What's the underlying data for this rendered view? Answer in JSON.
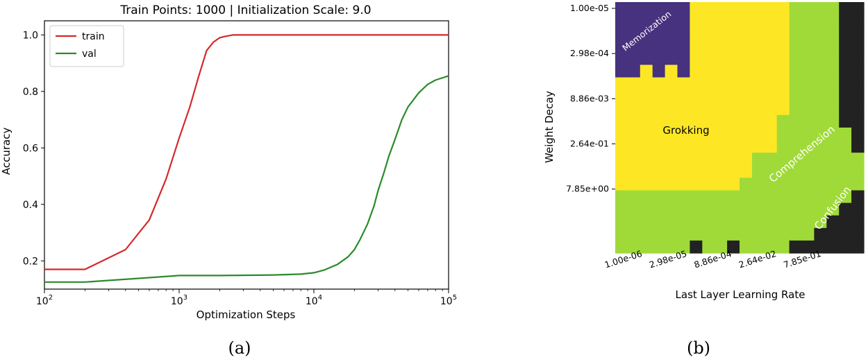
{
  "chart_data": [
    {
      "type": "line",
      "title": "Train Points: 1000 | Initialization Scale: 9.0",
      "xlabel": "Optimization Steps",
      "ylabel": "Accuracy",
      "xscale": "log",
      "xlim": [
        100,
        100000
      ],
      "ylim": [
        0.1,
        1.05
      ],
      "xticks": [
        {
          "value": 100,
          "base": "10",
          "exp": "2"
        },
        {
          "value": 1000,
          "base": "10",
          "exp": "3"
        },
        {
          "value": 10000,
          "base": "10",
          "exp": "4"
        },
        {
          "value": 100000,
          "base": "10",
          "exp": "5"
        }
      ],
      "yticks": [
        {
          "value": 0.2,
          "label": "0.2"
        },
        {
          "value": 0.4,
          "label": "0.4"
        },
        {
          "value": 0.6,
          "label": "0.6"
        },
        {
          "value": 0.8,
          "label": "0.8"
        },
        {
          "value": 1.0,
          "label": "1.0"
        }
      ],
      "legend_position": "top-left",
      "grid": false,
      "caption": "(a)",
      "series": [
        {
          "name": "train",
          "color": "#d62728",
          "x": [
            100,
            200,
            400,
            600,
            800,
            1000,
            1200,
            1400,
            1600,
            1800,
            2000,
            2200,
            2500,
            3000,
            5000,
            8000,
            10000,
            20000,
            50000,
            100000
          ],
          "y": [
            0.17,
            0.17,
            0.24,
            0.345,
            0.49,
            0.635,
            0.745,
            0.855,
            0.945,
            0.975,
            0.99,
            0.995,
            1.0,
            1.0,
            1.0,
            1.0,
            1.0,
            1.0,
            1.0,
            1.0
          ]
        },
        {
          "name": "val",
          "color": "#2a8a2a",
          "x": [
            100,
            200,
            500,
            1000,
            2000,
            5000,
            8000,
            10000,
            12000,
            15000,
            18000,
            20000,
            22000,
            25000,
            28000,
            30000,
            33000,
            36000,
            40000,
            45000,
            50000,
            60000,
            70000,
            80000,
            100000
          ],
          "y": [
            0.125,
            0.125,
            0.138,
            0.148,
            0.148,
            0.15,
            0.153,
            0.158,
            0.168,
            0.188,
            0.215,
            0.24,
            0.275,
            0.33,
            0.395,
            0.45,
            0.51,
            0.57,
            0.63,
            0.7,
            0.745,
            0.795,
            0.825,
            0.84,
            0.855
          ]
        }
      ]
    },
    {
      "type": "heatmap",
      "xlabel": "Last Layer Learning Rate",
      "ylabel": "Weight Decay",
      "xticklabels": [
        "1.00e-06",
        "2.98e-05",
        "8.86e-04",
        "2.64e-02",
        "7.85e-01"
      ],
      "yticklabels": [
        "1.00e-05",
        "2.98e-04",
        "8.86e-03",
        "2.64e-01",
        "7.85e+00"
      ],
      "grid_size": [
        20,
        20
      ],
      "colors": {
        "memorization": "#46327e",
        "grokking": "#fde725",
        "comprehension": "#a0da39",
        "confusion": "#222222"
      },
      "regions": [
        "Memorization",
        "Grokking",
        "Comprehension",
        "Confusion"
      ],
      "grid": [
        "MMMMMMGGGGGGGGCCCCKK",
        "MMMMMMGGGGGGGGCCCCKK",
        "MMMMMMGGGGGGGGCCCCKK",
        "MMMMMMGGGGGGGGCCCCKK",
        "MMMMMMGGGGGGGGCCCCKK",
        "MMGMGMGGGGGGGGCCCCKK",
        "GGGGGGGGGGGGGGCCCCKK",
        "GGGGGGGGGGGGGGCCCCKK",
        "GGGGGGGGGGGGGGCCCCKK",
        "GGGGGGGGGGGGGCCCCCKK",
        "GGGGGGGGGGGGGCCCCCCK",
        "GGGGGGGGGGGGGCCCCCCK",
        "GGGGGGGGGGGCCCCCCCCC",
        "GGGGGGGGGGGCCCCCCCCC",
        "GGGGGGGGGGCCCCCCCCCC",
        "CCCCCCCCCCCCCCCCCCCK",
        "CCCCCCCCCCCCCCCCCCKK",
        "CCCCCCCCCCCCCCCCCKKK",
        "CCCCCCCCCCCCCCCCKKKK",
        "CCCCCCKCCKCCCCKKKKKK"
      ],
      "caption": "(b)"
    }
  ]
}
